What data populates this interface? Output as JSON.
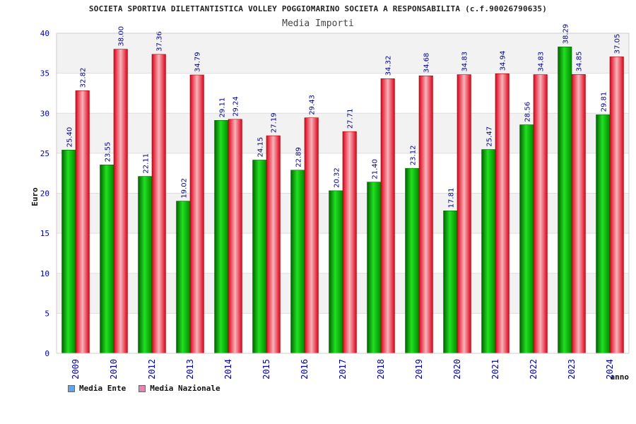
{
  "header": {
    "title": "SOCIETA SPORTIVA DILETTANTISTICA VOLLEY POGGIOMARINO SOCIETA A RESPONSABILITA (c.f.90026790635)",
    "subtitle": "Media Importi"
  },
  "legend": {
    "items": [
      {
        "label": "Media Ente",
        "color": "#66a3e0"
      },
      {
        "label": "Media Nazionale",
        "color": "#e088b0"
      }
    ]
  },
  "chart_data": {
    "type": "bar",
    "title": "Media Importi",
    "xlabel": "anno",
    "ylabel": "Euro",
    "ylim": [
      0,
      40
    ],
    "yticks": [
      0,
      5,
      10,
      15,
      20,
      25,
      30,
      35,
      40
    ],
    "grid": true,
    "legend_position": "bottom-left",
    "categories": [
      "2009",
      "2010",
      "2012",
      "2013",
      "2014",
      "2015",
      "2016",
      "2017",
      "2018",
      "2019",
      "2020",
      "2021",
      "2022",
      "2023",
      "2024"
    ],
    "series": [
      {
        "name": "Media Ente",
        "color": "#00aa00",
        "values": [
          25.4,
          23.55,
          22.11,
          19.02,
          29.11,
          24.15,
          22.89,
          20.32,
          21.4,
          23.12,
          17.81,
          25.47,
          28.56,
          38.29,
          29.81
        ],
        "labels": [
          "25.40",
          "23.55",
          "22.11",
          "19.02",
          "29.11",
          "24.15",
          "22.89",
          "20.32",
          "21.40",
          "23.12",
          "17.81",
          "25.47",
          "28.56",
          "38.29",
          "29.81"
        ]
      },
      {
        "name": "Media Nazionale",
        "color": "#ee1122",
        "values": [
          32.82,
          38.0,
          37.36,
          34.79,
          29.24,
          27.19,
          29.43,
          27.71,
          34.32,
          34.68,
          34.83,
          34.94,
          34.83,
          34.85,
          37.05
        ],
        "labels": [
          "32.82",
          "38.00",
          "37.36",
          "34.79",
          "29.24",
          "27.19",
          "29.43",
          "27.71",
          "34.32",
          "34.68",
          "34.83",
          "34.94",
          "34.83",
          "34.85",
          "37.05"
        ]
      }
    ]
  }
}
